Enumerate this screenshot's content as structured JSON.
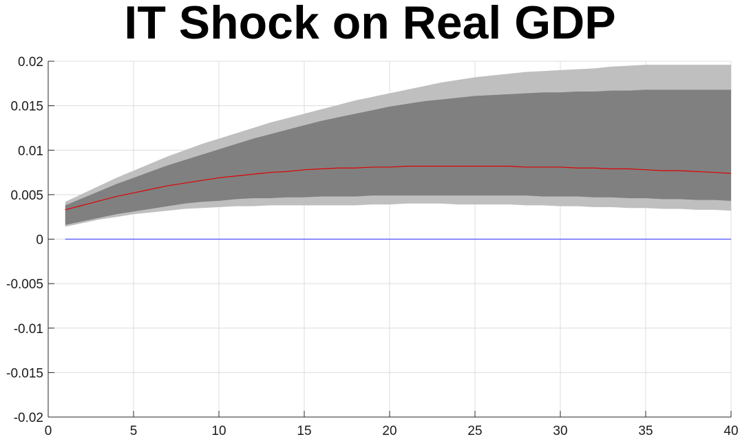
{
  "chart_data": {
    "type": "area",
    "title": "IT Shock on Real GDP",
    "xlabel": "",
    "ylabel": "",
    "xlim": [
      0,
      40
    ],
    "ylim": [
      -0.02,
      0.02
    ],
    "grid": true,
    "legend": "none",
    "xticks": [
      0,
      5,
      10,
      15,
      20,
      25,
      30,
      35,
      40
    ],
    "xtick_labels": [
      "0",
      "5",
      "10",
      "15",
      "20",
      "25",
      "30",
      "35",
      "40"
    ],
    "yticks": [
      0.02,
      0.015,
      0.01,
      0.005,
      0,
      -0.005,
      -0.01,
      -0.015,
      -0.02
    ],
    "ytick_labels": [
      "0.02",
      "0.015",
      "0.01",
      "0.005",
      "0",
      "-0.005",
      "-0.01",
      "-0.015",
      "-0.02"
    ],
    "x": [
      1,
      2,
      3,
      4,
      5,
      6,
      7,
      8,
      9,
      10,
      11,
      12,
      13,
      14,
      15,
      16,
      17,
      18,
      19,
      20,
      21,
      22,
      23,
      24,
      25,
      26,
      27,
      28,
      29,
      30,
      31,
      32,
      33,
      34,
      35,
      36,
      37,
      38,
      39,
      40
    ],
    "series": [
      {
        "role": "outer_band",
        "color": "#bfbfbf",
        "lower": [
          0.0014,
          0.0018,
          0.0022,
          0.0025,
          0.0028,
          0.003,
          0.0032,
          0.0034,
          0.0035,
          0.0036,
          0.0037,
          0.0037,
          0.0038,
          0.0038,
          0.0038,
          0.0038,
          0.0038,
          0.0038,
          0.0039,
          0.0039,
          0.004,
          0.004,
          0.004,
          0.0039,
          0.0039,
          0.0039,
          0.0039,
          0.0038,
          0.0038,
          0.0037,
          0.0037,
          0.0036,
          0.0036,
          0.0035,
          0.0035,
          0.0034,
          0.0034,
          0.0033,
          0.0033,
          0.0032
        ],
        "upper": [
          0.0042,
          0.0051,
          0.006,
          0.0069,
          0.0077,
          0.0085,
          0.0093,
          0.01,
          0.0107,
          0.0113,
          0.0119,
          0.0125,
          0.0131,
          0.0136,
          0.0141,
          0.0146,
          0.0151,
          0.0156,
          0.016,
          0.0164,
          0.0168,
          0.0172,
          0.0176,
          0.0179,
          0.0182,
          0.0184,
          0.0186,
          0.0188,
          0.0189,
          0.019,
          0.0191,
          0.0192,
          0.0194,
          0.0195,
          0.0196,
          0.0196,
          0.0196,
          0.0196,
          0.0196,
          0.0196
        ]
      },
      {
        "role": "inner_band",
        "color": "#808080",
        "lower": [
          0.0016,
          0.002,
          0.0024,
          0.0028,
          0.0031,
          0.0034,
          0.0037,
          0.004,
          0.0042,
          0.0043,
          0.0045,
          0.0046,
          0.0046,
          0.0047,
          0.0047,
          0.0048,
          0.0048,
          0.0048,
          0.0049,
          0.0049,
          0.0049,
          0.0049,
          0.0049,
          0.0049,
          0.0049,
          0.0049,
          0.0049,
          0.0049,
          0.0048,
          0.0048,
          0.0048,
          0.0047,
          0.0047,
          0.0046,
          0.0046,
          0.0045,
          0.0045,
          0.0044,
          0.0044,
          0.0043
        ],
        "upper": [
          0.0038,
          0.0046,
          0.0054,
          0.0062,
          0.0069,
          0.0076,
          0.0083,
          0.0089,
          0.0095,
          0.0101,
          0.0107,
          0.0113,
          0.0118,
          0.0123,
          0.0128,
          0.0133,
          0.0137,
          0.0141,
          0.0145,
          0.0149,
          0.0152,
          0.0155,
          0.0157,
          0.0159,
          0.0161,
          0.0162,
          0.0163,
          0.0164,
          0.0165,
          0.0165,
          0.0166,
          0.0166,
          0.0167,
          0.0167,
          0.0168,
          0.0168,
          0.0168,
          0.0168,
          0.0168,
          0.0168
        ]
      },
      {
        "role": "median",
        "color": "#e00000",
        "values": [
          0.0033,
          0.0038,
          0.0043,
          0.0048,
          0.0052,
          0.0056,
          0.006,
          0.0063,
          0.0066,
          0.0069,
          0.0071,
          0.0073,
          0.0075,
          0.0076,
          0.0078,
          0.0079,
          0.008,
          0.008,
          0.0081,
          0.0081,
          0.0082,
          0.0082,
          0.0082,
          0.0082,
          0.0082,
          0.0082,
          0.0082,
          0.0081,
          0.0081,
          0.0081,
          0.008,
          0.008,
          0.0079,
          0.0079,
          0.0078,
          0.0077,
          0.0077,
          0.0076,
          0.0075,
          0.0074
        ]
      },
      {
        "role": "zero_line",
        "color": "#4d4dff",
        "values": [
          0,
          0,
          0,
          0,
          0,
          0,
          0,
          0,
          0,
          0,
          0,
          0,
          0,
          0,
          0,
          0,
          0,
          0,
          0,
          0,
          0,
          0,
          0,
          0,
          0,
          0,
          0,
          0,
          0,
          0,
          0,
          0,
          0,
          0,
          0,
          0,
          0,
          0,
          0,
          0
        ]
      }
    ]
  }
}
